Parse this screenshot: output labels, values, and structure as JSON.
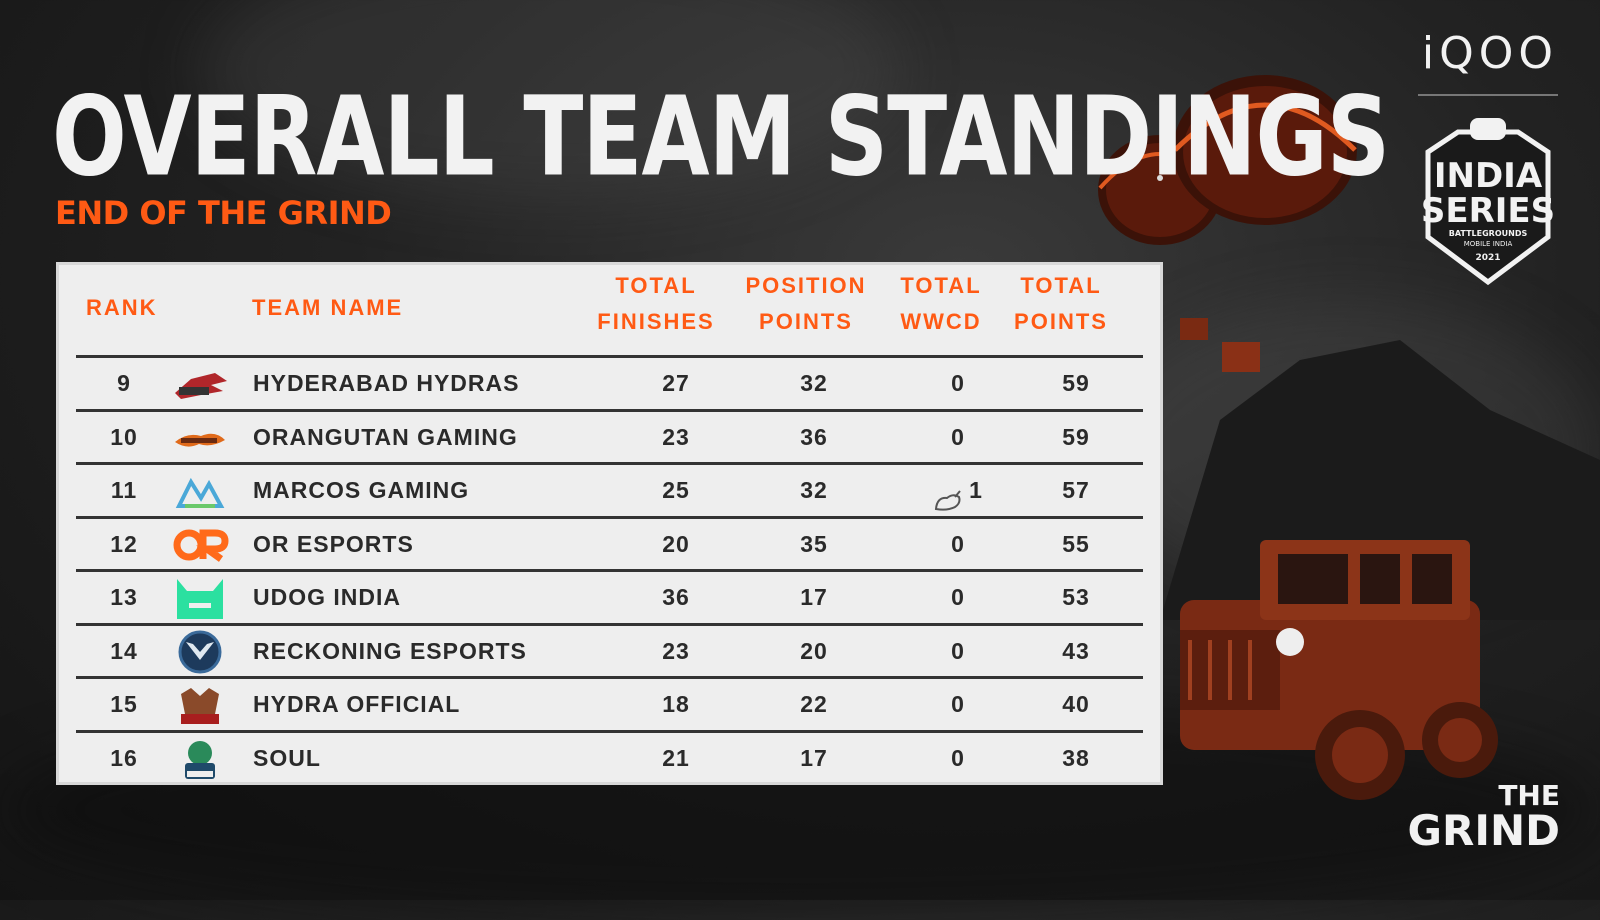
{
  "header": {
    "title": "OVERALL TEAM STANDINGS",
    "subtitle": "END OF THE GRIND"
  },
  "branding": {
    "sponsor": "iQOO",
    "series_logo_line1": "INDIA",
    "series_logo_line2": "SERIES",
    "series_logo_small": "BATTLEGROUNDS",
    "series_logo_small2": "MOBILE INDIA",
    "series_logo_year": "2021",
    "event_line1": "THE",
    "event_line2": "GRIND"
  },
  "colors": {
    "accent": "#ff5a14",
    "panel": "#eeeeee",
    "text_dark": "#2a2a2a"
  },
  "table": {
    "columns": {
      "rank": "RANK",
      "team_name": "TEAM NAME",
      "finishes_1": "TOTAL",
      "finishes_2": "FINISHES",
      "position_1": "POSITION",
      "position_2": "POINTS",
      "wwcd_1": "TOTAL",
      "wwcd_2": "WWCD",
      "total_1": "TOTAL",
      "total_2": "POINTS"
    },
    "rows": [
      {
        "rank": "9",
        "team": "HYDERABAD HYDRAS",
        "logo": "hydras-logo-icon",
        "finishes": "27",
        "position": "32",
        "wwcd": "0",
        "total": "59"
      },
      {
        "rank": "10",
        "team": "ORANGUTAN GAMING",
        "logo": "orangutan-logo-icon",
        "finishes": "23",
        "position": "36",
        "wwcd": "0",
        "total": "59"
      },
      {
        "rank": "11",
        "team": "MARCOS GAMING",
        "logo": "marcos-logo-icon",
        "finishes": "25",
        "position": "32",
        "wwcd": "1",
        "total": "57",
        "chicken": "chicken-dinner-icon"
      },
      {
        "rank": "12",
        "team": "OR ESPORTS",
        "logo": "or-logo-icon",
        "finishes": "20",
        "position": "35",
        "wwcd": "0",
        "total": "55"
      },
      {
        "rank": "13",
        "team": "UDOG INDIA",
        "logo": "udog-logo-icon",
        "finishes": "36",
        "position": "17",
        "wwcd": "0",
        "total": "53"
      },
      {
        "rank": "14",
        "team": "RECKONING ESPORTS",
        "logo": "reckoning-logo-icon",
        "finishes": "23",
        "position": "20",
        "wwcd": "0",
        "total": "43"
      },
      {
        "rank": "15",
        "team": "HYDRA OFFICIAL",
        "logo": "hydra-logo-icon",
        "finishes": "18",
        "position": "22",
        "wwcd": "0",
        "total": "40"
      },
      {
        "rank": "16",
        "team": "SOUL",
        "logo": "soul-logo-icon",
        "finishes": "21",
        "position": "17",
        "wwcd": "0",
        "total": "38"
      }
    ]
  }
}
